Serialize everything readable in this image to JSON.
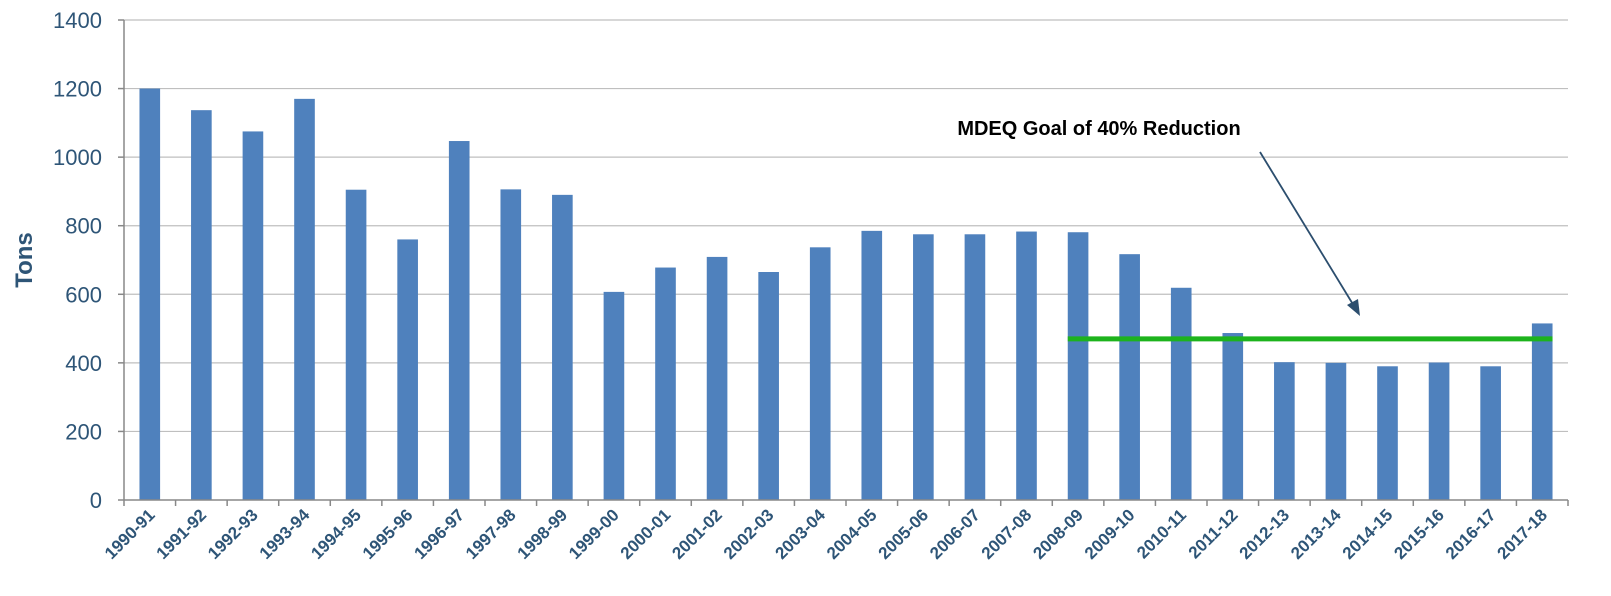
{
  "chart_data": {
    "type": "bar",
    "ylabel": "Tons",
    "xlabel": "",
    "ylim": [
      0,
      1400
    ],
    "yticks": [
      0,
      200,
      400,
      600,
      800,
      1000,
      1200,
      1400
    ],
    "grid": true,
    "legend": "none",
    "categories": [
      "1990-91",
      "1991-92",
      "1992-93",
      "1993-94",
      "1994-95",
      "1995-96",
      "1996-97",
      "1997-98",
      "1998-99",
      "1999-00",
      "2000-01",
      "2001-02",
      "2002-03",
      "2003-04",
      "2004-05",
      "2005-06",
      "2006-07",
      "2007-08",
      "2008-09",
      "2009-10",
      "2010-11",
      "2011-12",
      "2012-13",
      "2013-14",
      "2014-15",
      "2015-16",
      "2016-17",
      "2017-18"
    ],
    "values": [
      1200,
      1137,
      1075,
      1170,
      905,
      760,
      1047,
      906,
      890,
      607,
      678,
      709,
      665,
      737,
      785,
      775,
      775,
      783,
      781,
      717,
      619,
      487,
      402,
      400,
      390,
      401,
      390,
      515
    ],
    "bar_color": "#4f81bd",
    "goal": {
      "label": "MDEQ Goal of 40% Reduction",
      "value": 470,
      "from_category": "2008-09",
      "to_category": "2017-18",
      "color": "#1db31d"
    }
  }
}
